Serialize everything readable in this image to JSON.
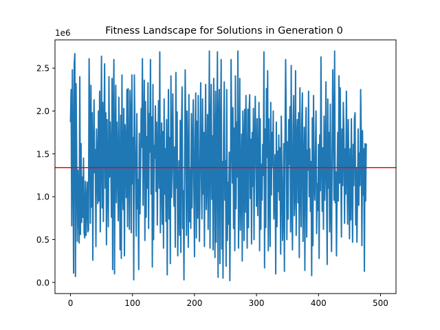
{
  "chart_data": {
    "type": "line",
    "title": "Fitness Landscape for Solutions in Generation 0",
    "xlabel": "",
    "ylabel": "",
    "y_offset_label": "1e6",
    "xlim": [
      -25,
      525
    ],
    "ylim": [
      -0.13,
      2.83
    ],
    "x_ticks": [
      0,
      100,
      200,
      300,
      400,
      500
    ],
    "y_ticks": [
      0.0,
      0.5,
      1.0,
      1.5,
      2.0,
      2.5
    ],
    "y_tick_labels": [
      "0.0",
      "0.5",
      "1.0",
      "1.5",
      "2.0",
      "2.5"
    ],
    "grid": false,
    "series": [
      {
        "color": "#1f77b4",
        "x_start": 0,
        "x_step": 1,
        "values": [
          1.87,
          2.25,
          0.66,
          2.48,
          1.6,
          0.11,
          2.54,
          2.67,
          0.07,
          2.32,
          1.42,
          0.48,
          1.31,
          0.87,
          0.46,
          2.4,
          0.56,
          1.62,
          0.7,
          1.23,
          0.76,
          1.45,
          0.58,
          0.52,
          1.18,
          0.55,
          0.94,
          1.17,
          0.59,
          0.61,
          2.61,
          1.8,
          0.69,
          2.3,
          0.88,
          1.98,
          0.26,
          1.52,
          2.13,
          1.28,
          1.55,
          0.42,
          1.79,
          1.4,
          0.92,
          2.0,
          0.95,
          2.23,
          0.59,
          1.63,
          2.64,
          0.87,
          2.1,
          0.71,
          1.75,
          2.55,
          1.1,
          1.98,
          0.44,
          1.9,
          1.13,
          0.65,
          2.4,
          1.23,
          1.87,
          1.43,
          0.76,
          2.38,
          0.15,
          1.95,
          2.6,
          0.1,
          1.61,
          2.3,
          0.93,
          1.87,
          1.44,
          0.72,
          2.16,
          1.2,
          0.38,
          1.95,
          0.28,
          2.42,
          1.1,
          0.85,
          2.03,
          0.31,
          1.84,
          1.6,
          0.99,
          2.25,
          0.65,
          2.26,
          1.38,
          0.62,
          2.24,
          1.92,
          0.58,
          2.42,
          1.15,
          1.69,
          0.03,
          2.42,
          1.74,
          1.19,
          0.54,
          1.97,
          0.86,
          1.2,
          0.15,
          1.74,
          0.8,
          1.3,
          2.03,
          1.58,
          2.61,
          0.9,
          1.71,
          2.36,
          0.49,
          2.11,
          0.76,
          1.7,
          1.1,
          2.33,
          0.63,
          1.97,
          1.52,
          2.6,
          1.03,
          1.93,
          0.18,
          2.31,
          0.5,
          1.6,
          1.45,
          2.06,
          1.06,
          1.87,
          0.67,
          1.44,
          2.12,
          1.1,
          2.69,
          0.58,
          1.25,
          1.86,
          0.68,
          1.76,
          0.4,
          2.14,
          1.03,
          1.56,
          0.71,
          1.9,
          0.09,
          1.38,
          2.25,
          0.74,
          1.69,
          0.22,
          2.41,
          0.99,
          1.51,
          2.2,
          1.27,
          0.89,
          1.58,
          0.41,
          2.45,
          1.1,
          1.99,
          0.31,
          0.96,
          1.42,
          0.55,
          1.89,
          0.35,
          1.74,
          2.28,
          0.63,
          1.07,
          0.03,
          1.31,
          2.48,
          1.71,
          0.55,
          2.0,
          1.31,
          0.41,
          2.19,
          0.71,
          1.32,
          0.63,
          1.97,
          0.87,
          1.54,
          2.13,
          1.14,
          0.3,
          1.69,
          2.21,
          0.52,
          1.88,
          0.75,
          2.18,
          1.0,
          0.48,
          1.54,
          2.33,
          1.27,
          0.74,
          2.14,
          1.03,
          1.75,
          0.42,
          1.59,
          2.31,
          0.85,
          1.21,
          1.96,
          0.62,
          1.64,
          2.7,
          0.4,
          1.7,
          2.31,
          0.97,
          1.71,
          0.38,
          2.38,
          1.56,
          0.29,
          2.23,
          0.47,
          1.52,
          2.69,
          0.06,
          1.86,
          2.25,
          0.22,
          1.68,
          2.6,
          0.39,
          1.41,
          0.05,
          1.75,
          2.34,
          0.96,
          1.42,
          0.19,
          2.25,
          0.49,
          1.17,
          0.68,
          1.52,
          0.02,
          0.95,
          2.6,
          1.7,
          1.16,
          2.04,
          0.63,
          1.8,
          0.37,
          2.41,
          0.86,
          1.87,
          1.23,
          2.7,
          0.4,
          1.06,
          2.38,
          0.61,
          1.13,
          1.73,
          0.25,
          2.0,
          1.64,
          0.49,
          2.02,
          0.82,
          2.18,
          1.2,
          0.4,
          2.02,
          0.64,
          1.97,
          2.19,
          0.98,
          1.67,
          0.45,
          1.75,
          1.12,
          2.03,
          0.5,
          1.58,
          2.17,
          1.44,
          0.89,
          1.91,
          0.78,
          1.39,
          2.1,
          0.37,
          1.91,
          0.62,
          1.38,
          0.96,
          1.61,
          1.25,
          2.69,
          0.17,
          1.79,
          0.64,
          2.26,
          1.46,
          2.47,
          0.37,
          1.91,
          1.2,
          0.42,
          2.1,
          1.02,
          1.75,
          1.36,
          2.0,
          0.74,
          1.1,
          1.49,
          0.1,
          1.87,
          0.65,
          1.53,
          1.06,
          1.72,
          0.96,
          1.57,
          0.33,
          1.94,
          1.27,
          0.49,
          0.86,
          1.62,
          0.13,
          1.63,
          2.6,
          1.81,
          0.5,
          1.64,
          0.74,
          1.9,
          1.38,
          2.05,
          0.59,
          2.53,
          0.97,
          0.38,
          1.78,
          2.18,
          0.78,
          1.04,
          2.47,
          0.55,
          1.63,
          1.9,
          0.93,
          1.98,
          0.29,
          2.27,
          1.26,
          0.65,
          1.85,
          2.21,
          0.48,
          1.26,
          1.81,
          0.14,
          1.6,
          2.04,
          0.53,
          1.54,
          1.31,
          2.23,
          1.0,
          1.56,
          0.83,
          1.41,
          0.08,
          1.92,
          0.43,
          2.18,
          1.17,
          0.96,
          1.5,
          2.0,
          0.57,
          1.15,
          0.84,
          1.61,
          0.28,
          1.72,
          1.07,
          2.63,
          1.47,
          0.83,
          1.57,
          0.62,
          1.94,
          0.96,
          1.3,
          2.34,
          1.06,
          0.21,
          2.14,
          1.1,
          1.75,
          0.59,
          2.08,
          0.92,
          0.36,
          1.53,
          2.48,
          1.7,
          0.96,
          2.7,
          0.93,
          1.29,
          0.31,
          1.15,
          1.75,
          0.95,
          2.41,
          1.16,
          2.27,
          1.34,
          0.53,
          1.79,
          1.13,
          2.1,
          1.74,
          0.69,
          1.56,
          1.03,
          2.23,
          1.39,
          0.68,
          1.9,
          1.26,
          0.51,
          1.56,
          0.73,
          1.91,
          1.14,
          0.47,
          1.61,
          1.13,
          1.92,
          1.98,
          0.67,
          1.33,
          0.47,
          1.08,
          1.79,
          0.9,
          1.51,
          1.13,
          2.25,
          1.69,
          0.43,
          1.77,
          1.02,
          1.56,
          0.13,
          1.62,
          0.95,
          1.62
        ]
      }
    ],
    "hlines": [
      {
        "y": 1.34,
        "color": "#ff0000"
      }
    ]
  }
}
